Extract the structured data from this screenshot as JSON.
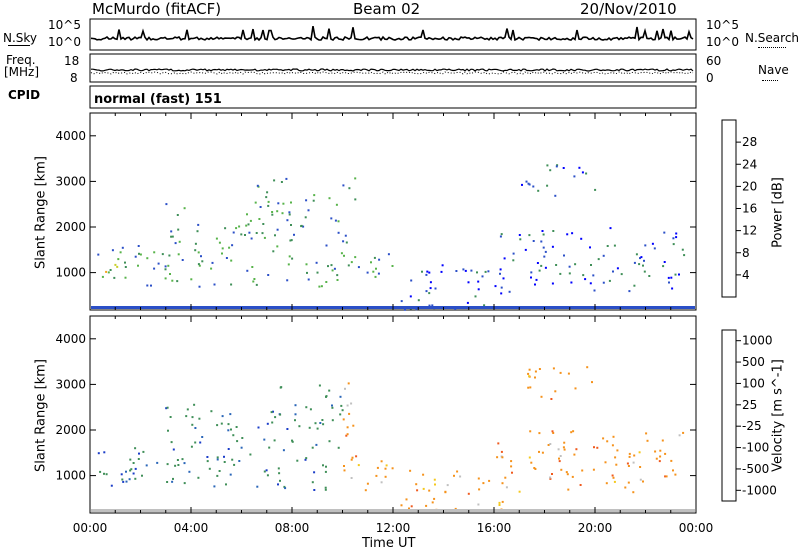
{
  "header": {
    "station": "McMurdo (fitACF)",
    "beam": "Beam 02",
    "date": "20/Nov/2010"
  },
  "strip_panels": {
    "nsky_label": "N.Sky",
    "nsky_ticks": [
      "10^5",
      "10^0"
    ],
    "nsearch_label": "N.Search",
    "nsearch_ticks": [
      "10^5",
      "10^0"
    ],
    "freq_label_1": "Freq.",
    "freq_label_2": "[MHz]",
    "freq_ticks": [
      "18",
      "8"
    ],
    "nave_label": "Nave",
    "nave_ticks": [
      "60",
      "0"
    ],
    "cpid_label": "CPID",
    "cpid_text": "normal (fast) 151"
  },
  "chart_data": [
    {
      "type": "heatmap",
      "name": "power",
      "ylabel": "Slant Range [km]",
      "xlabel": "",
      "ylim": [
        180,
        4500
      ],
      "yticks": [
        "1000",
        "2000",
        "3000",
        "4000"
      ],
      "xlim": [
        0,
        24
      ],
      "colorbar": {
        "label": "Power [dB]",
        "ticks": [
          "4",
          "8",
          "12",
          "16",
          "20",
          "24",
          "28"
        ],
        "colors": [
          "#0000ff",
          "#2b4fc7",
          "#3f8f58",
          "#57b34a",
          "#c8cf2a",
          "#f5a21b",
          "#f0641e",
          "#e01a1a"
        ]
      },
      "echo_regions": [
        {
          "t0": 0.2,
          "t1": 2.8,
          "r0": 700,
          "r1": 1700,
          "level": "med"
        },
        {
          "t0": 0.5,
          "t1": 2.0,
          "r0": 900,
          "r1": 1200,
          "level": "high"
        },
        {
          "t0": 2.8,
          "t1": 6.5,
          "r0": 700,
          "r1": 2600,
          "level": "med"
        },
        {
          "t0": 6.5,
          "t1": 10.5,
          "r0": 700,
          "r1": 3100,
          "level": "med"
        },
        {
          "t0": 10.2,
          "t1": 12.0,
          "r0": 700,
          "r1": 1500,
          "level": "med"
        },
        {
          "t0": 12.0,
          "t1": 16.5,
          "r0": 200,
          "r1": 1200,
          "level": "low"
        },
        {
          "t0": 16.0,
          "t1": 23.5,
          "r0": 600,
          "r1": 2000,
          "level": "low"
        },
        {
          "t0": 17.0,
          "t1": 20.0,
          "r0": 2700,
          "r1": 3400,
          "level": "low"
        }
      ]
    },
    {
      "type": "heatmap",
      "name": "velocity",
      "ylabel": "Slant Range [km]",
      "xlabel": "Time UT",
      "ylim": [
        180,
        4500
      ],
      "yticks": [
        "1000",
        "2000",
        "3000",
        "4000"
      ],
      "xlim": [
        0,
        24
      ],
      "xticks": [
        "00:00",
        "04:00",
        "08:00",
        "12:00",
        "16:00",
        "20:00",
        "00:00"
      ],
      "colorbar": {
        "label": "Velocity [m s^-1]",
        "ticks": [
          "1000",
          "500",
          "100",
          "25",
          "-25",
          "-100",
          "-500",
          "-1000"
        ],
        "colors": [
          "#1a3cc8",
          "#2a66b8",
          "#3f8f58",
          "#7ecf3a",
          "#c0c0c0",
          "#f5c81b",
          "#f5921b",
          "#f05a1e",
          "#e01a1a"
        ]
      }
    }
  ]
}
